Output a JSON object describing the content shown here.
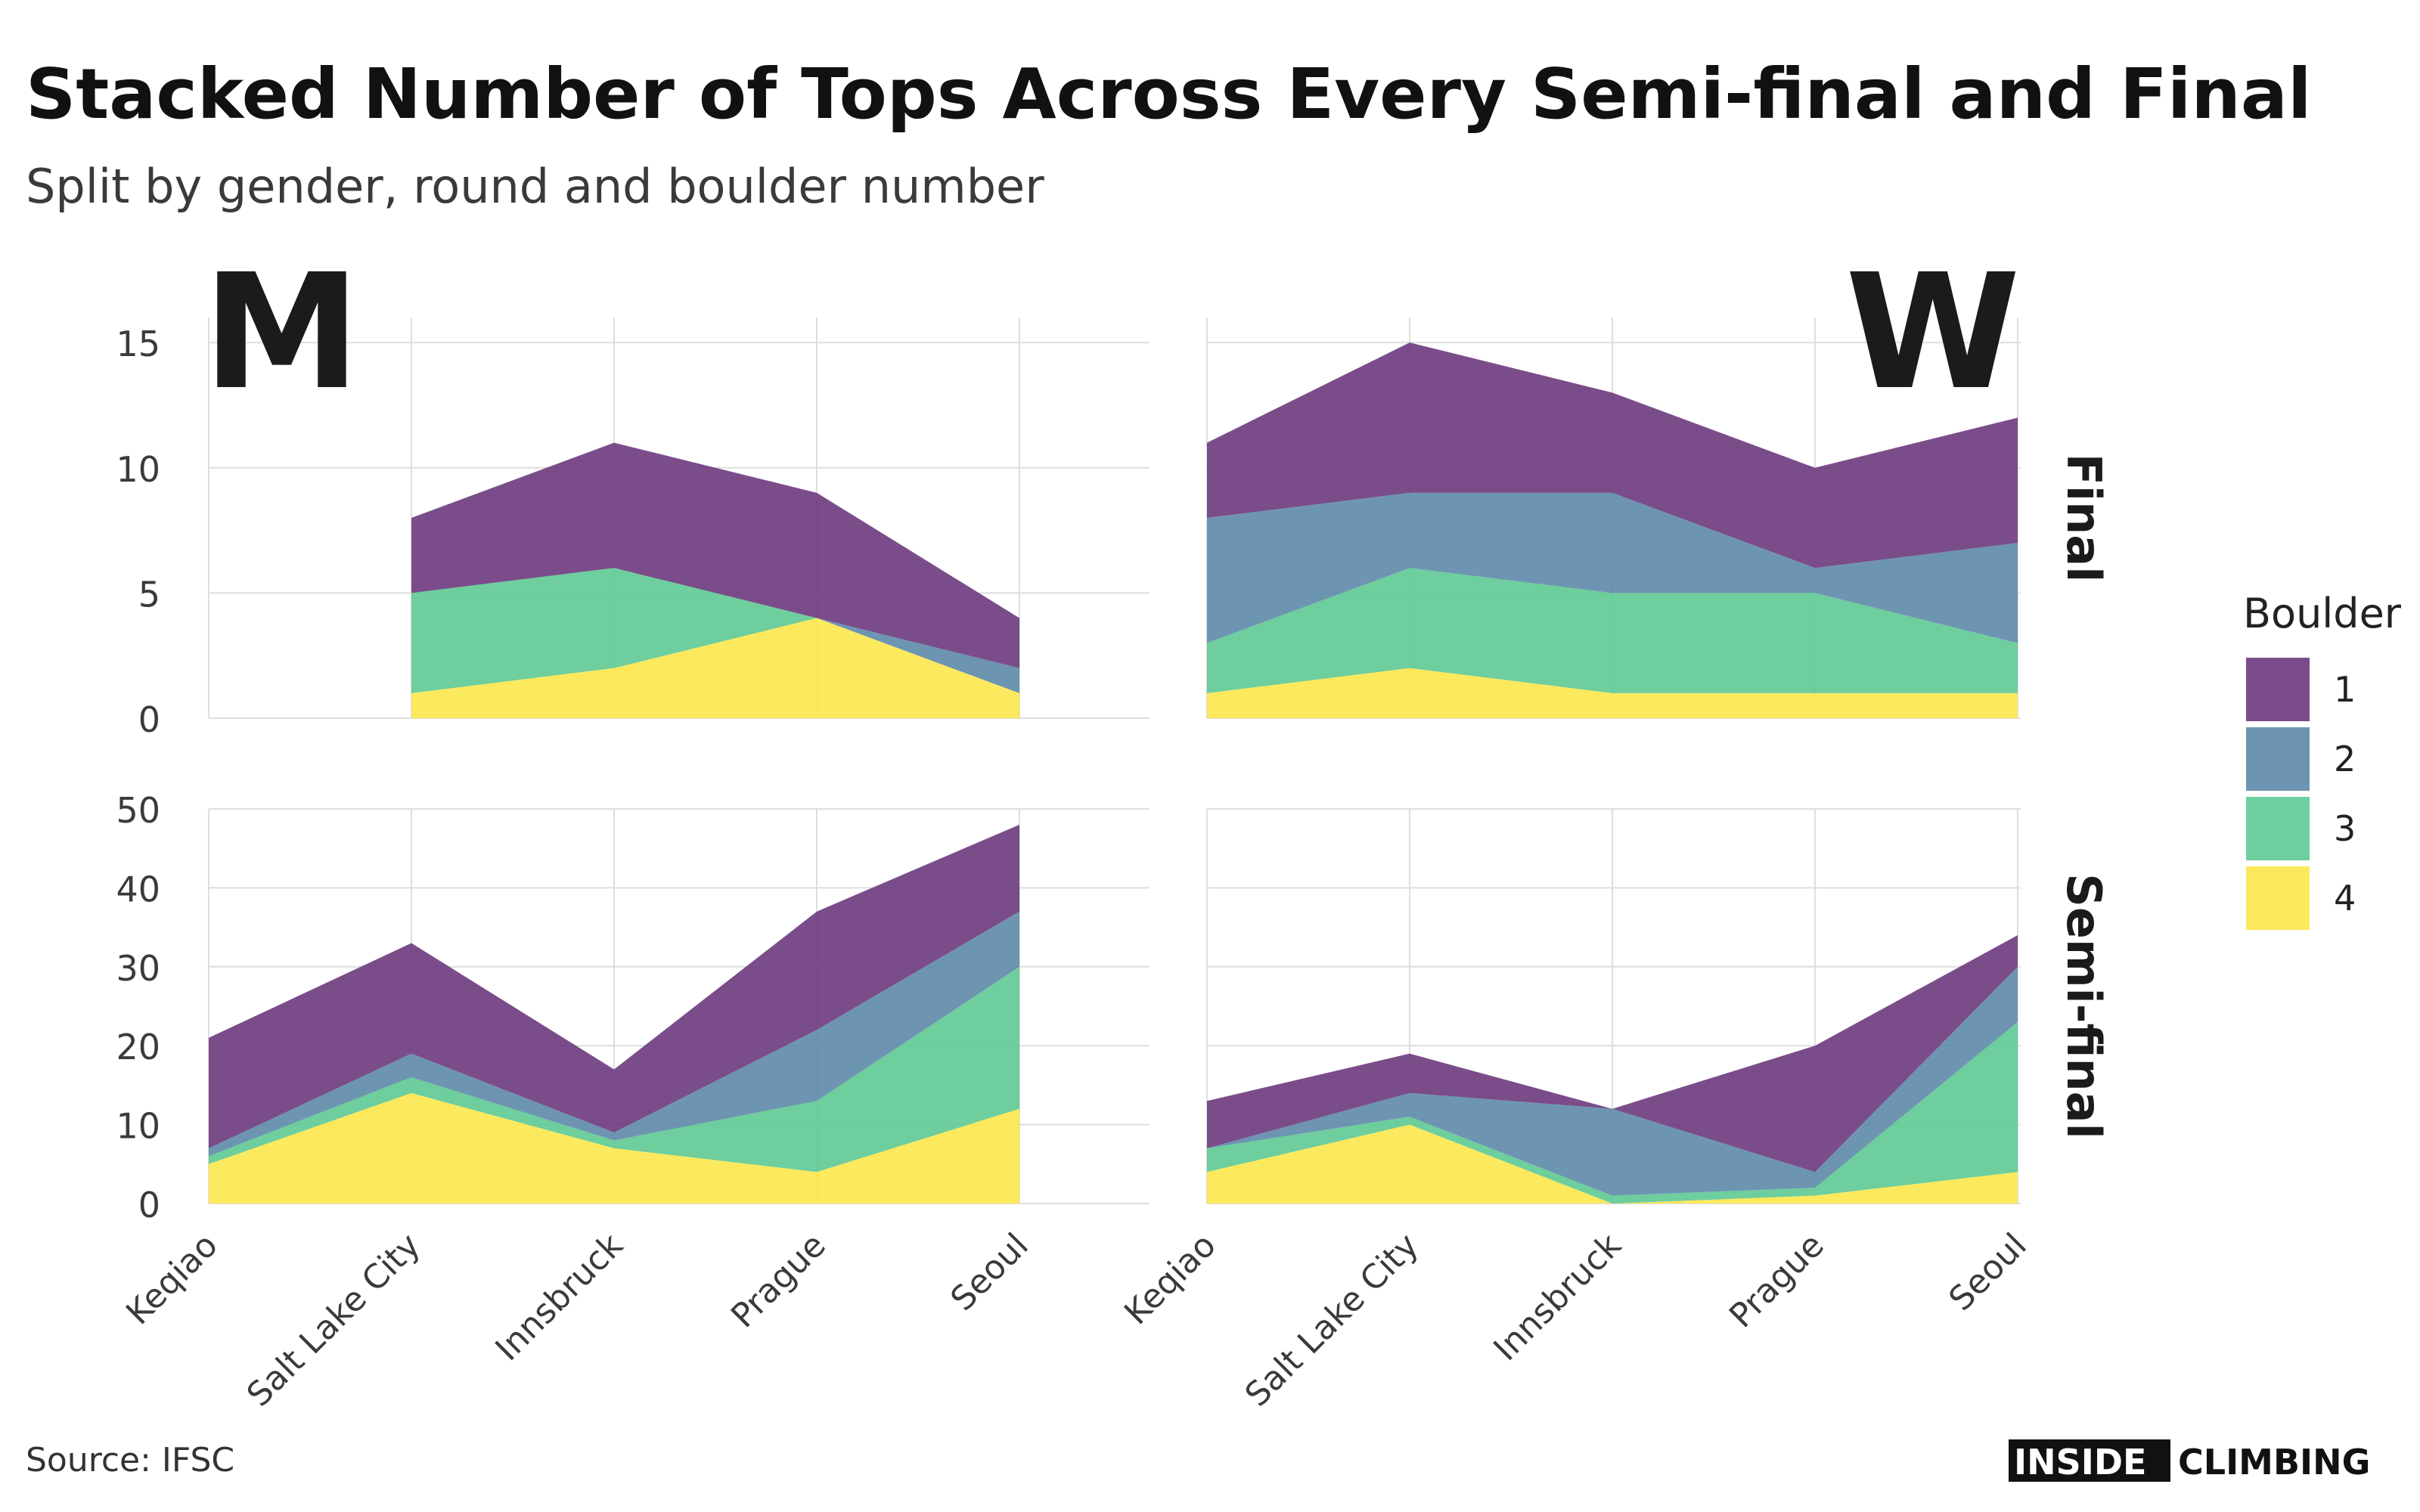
{
  "title": "Stacked Number of Tops Across Every Semi-final and Final",
  "subtitle": "Split by gender, round and boulder number",
  "caption": "Source: IFSC",
  "logo": {
    "part1": "INSIDE",
    "part2": "CLIMBING"
  },
  "colors": {
    "1": "#6b3a7d",
    "2": "#5d8aa8",
    "3": "#5ec992",
    "4": "#fde74c",
    "grid": "#dedede"
  },
  "chart_data": {
    "type": "area",
    "stacked": true,
    "categories": [
      "Keqiao",
      "Salt Lake City",
      "Innsbruck",
      "Prague",
      "Seoul"
    ],
    "facet_columns": [
      "M",
      "W"
    ],
    "facet_rows": [
      "Final",
      "Semi-final"
    ],
    "legend": {
      "title": "Boulder",
      "labels": [
        "1",
        "2",
        "3",
        "4"
      ],
      "position": "right"
    },
    "grid": true,
    "panels": [
      {
        "column": "M",
        "row": "Final",
        "ylim": [
          0,
          16
        ],
        "yticks": [
          0,
          5,
          10,
          15
        ],
        "categories": [
          "Salt Lake City",
          "Innsbruck",
          "Prague",
          "Seoul"
        ],
        "series": [
          {
            "name": "1",
            "values": [
              3,
              5,
              5,
              2
            ]
          },
          {
            "name": "2",
            "values": [
              0,
              0,
              0,
              1
            ]
          },
          {
            "name": "3",
            "values": [
              4,
              4,
              0,
              0
            ]
          },
          {
            "name": "4",
            "values": [
              1,
              2,
              4,
              1
            ]
          }
        ]
      },
      {
        "column": "W",
        "row": "Final",
        "ylim": [
          0,
          16
        ],
        "yticks": [
          0,
          5,
          10,
          15
        ],
        "categories": [
          "Keqiao",
          "Salt Lake City",
          "Innsbruck",
          "Prague",
          "Seoul"
        ],
        "series": [
          {
            "name": "1",
            "values": [
              3,
              6,
              4,
              4,
              5
            ]
          },
          {
            "name": "2",
            "values": [
              5,
              3,
              4,
              1,
              4
            ]
          },
          {
            "name": "3",
            "values": [
              2,
              4,
              4,
              4,
              2
            ]
          },
          {
            "name": "4",
            "values": [
              1,
              2,
              1,
              1,
              1
            ]
          }
        ]
      },
      {
        "column": "M",
        "row": "Semi-final",
        "ylim": [
          0,
          50
        ],
        "yticks": [
          0,
          10,
          20,
          30,
          40,
          50
        ],
        "categories": [
          "Keqiao",
          "Salt Lake City",
          "Innsbruck",
          "Prague",
          "Seoul"
        ],
        "series": [
          {
            "name": "1",
            "values": [
              14,
              14,
              8,
              15,
              11
            ]
          },
          {
            "name": "2",
            "values": [
              1,
              3,
              1,
              9,
              7
            ]
          },
          {
            "name": "3",
            "values": [
              1,
              2,
              1,
              9,
              18
            ]
          },
          {
            "name": "4",
            "values": [
              5,
              14,
              7,
              4,
              12
            ]
          }
        ]
      },
      {
        "column": "W",
        "row": "Semi-final",
        "ylim": [
          0,
          50
        ],
        "yticks": [
          0,
          10,
          20,
          30,
          40,
          50
        ],
        "categories": [
          "Keqiao",
          "Salt Lake City",
          "Innsbruck",
          "Prague",
          "Seoul"
        ],
        "series": [
          {
            "name": "1",
            "values": [
              6,
              5,
              0,
              16,
              4
            ]
          },
          {
            "name": "2",
            "values": [
              0,
              3,
              11,
              2,
              7
            ]
          },
          {
            "name": "3",
            "values": [
              3,
              1,
              1,
              1,
              19
            ]
          },
          {
            "name": "4",
            "values": [
              4,
              10,
              0,
              1,
              4
            ]
          }
        ]
      }
    ]
  }
}
